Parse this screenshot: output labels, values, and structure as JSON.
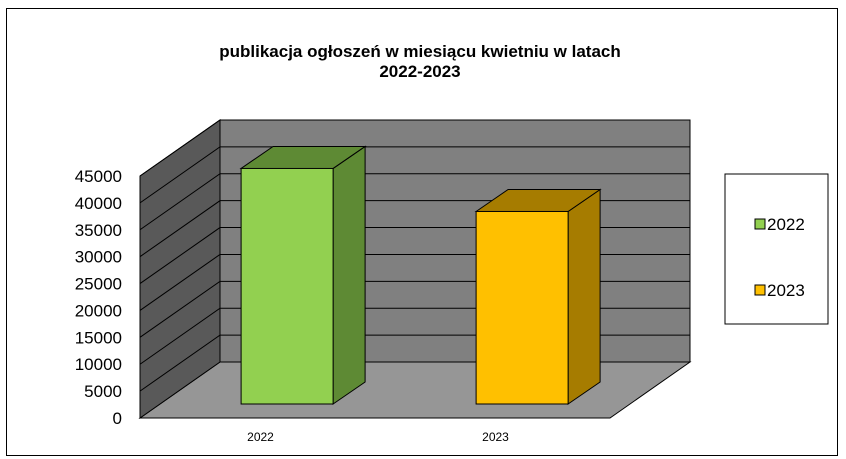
{
  "chart_data": {
    "type": "bar",
    "title": "publikacja ogłoszeń w miesiącu kwietniu w latach",
    "subtitle": "2022-2023",
    "categories": [
      "2022",
      "2023"
    ],
    "series": [
      {
        "name": "2022",
        "values": [
          43800,
          null
        ],
        "color": "#92d050",
        "side_color": "#5e8a34"
      },
      {
        "name": "2023",
        "values": [
          null,
          35800
        ],
        "color": "#ffc000",
        "side_color": "#a67c00"
      }
    ],
    "ylim": [
      0,
      45000
    ],
    "yticks": [
      "0",
      "5000",
      "10000",
      "15000",
      "20000",
      "25000",
      "30000",
      "35000",
      "40000",
      "45000"
    ],
    "xlabel": "",
    "ylabel": "",
    "grid": true,
    "legend_position": "right",
    "wall_color": "#808080",
    "side_wall_color": "#595959",
    "floor_color": "#969696"
  }
}
